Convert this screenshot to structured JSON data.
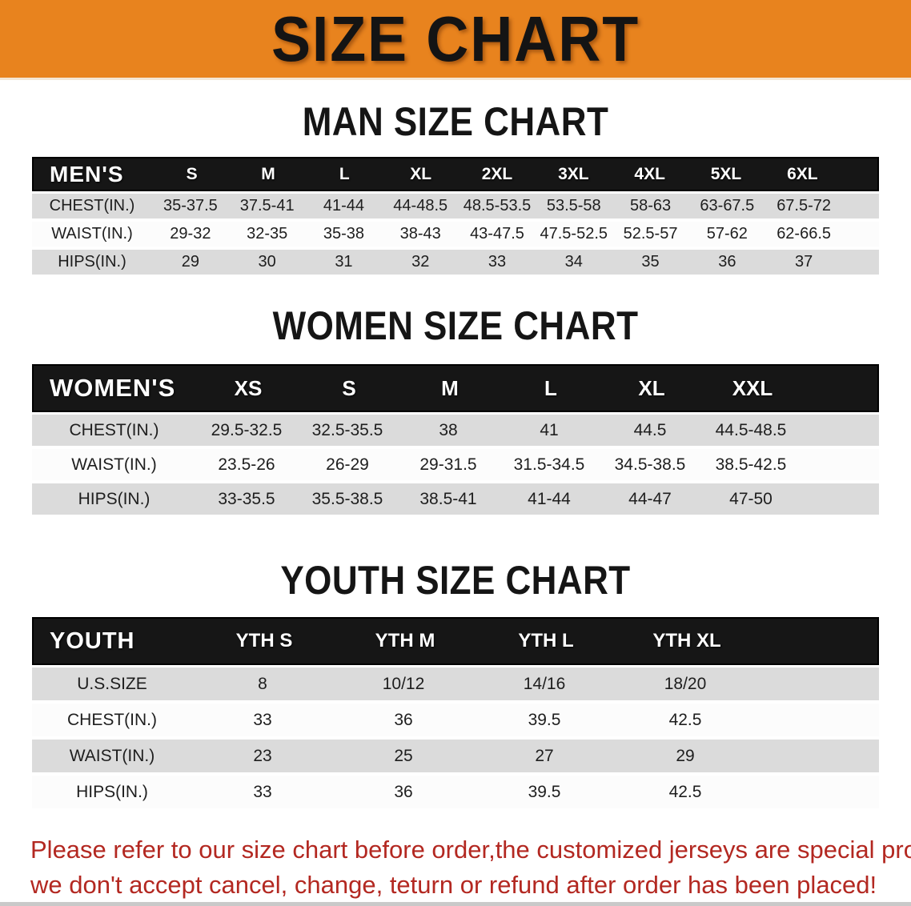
{
  "banner": {
    "title": "SIZE CHART"
  },
  "colors": {
    "banner_bg": "#E8831E",
    "header_bar": "#161616",
    "row_stripe": "#DBDBDB",
    "disclaimer_text": "#B32821"
  },
  "sections": [
    {
      "heading": "MAN SIZE CHART",
      "table": {
        "label": "MEN'S",
        "columns": [
          "S",
          "M",
          "L",
          "XL",
          "2XL",
          "3XL",
          "4XL",
          "5XL",
          "6XL"
        ],
        "rows": [
          {
            "label": "CHEST(IN.)",
            "values": [
              "35-37.5",
              "37.5-41",
              "41-44",
              "44-48.5",
              "48.5-53.5",
              "53.5-58",
              "58-63",
              "63-67.5",
              "67.5-72"
            ]
          },
          {
            "label": "WAIST(IN.)",
            "values": [
              "29-32",
              "32-35",
              "35-38",
              "38-43",
              "43-47.5",
              "47.5-52.5",
              "52.5-57",
              "57-62",
              "62-66.5"
            ]
          },
          {
            "label": "HIPS(IN.)",
            "values": [
              "29",
              "30",
              "31",
              "32",
              "33",
              "34",
              "35",
              "36",
              "37"
            ]
          }
        ]
      }
    },
    {
      "heading": "WOMEN SIZE CHART",
      "table": {
        "label": "WOMEN'S",
        "columns": [
          "XS",
          "S",
          "M",
          "L",
          "XL",
          "XXL"
        ],
        "rows": [
          {
            "label": "CHEST(IN.)",
            "values": [
              "29.5-32.5",
              "32.5-35.5",
              "38",
              "41",
              "44.5",
              "44.5-48.5"
            ]
          },
          {
            "label": "WAIST(IN.)",
            "values": [
              "23.5-26",
              "26-29",
              "29-31.5",
              "31.5-34.5",
              "34.5-38.5",
              "38.5-42.5"
            ]
          },
          {
            "label": "HIPS(IN.)",
            "values": [
              "33-35.5",
              "35.5-38.5",
              "38.5-41",
              "41-44",
              "44-47",
              "47-50"
            ]
          }
        ]
      }
    },
    {
      "heading": "YOUTH SIZE CHART",
      "table": {
        "label": "YOUTH",
        "columns": [
          "YTH S",
          "YTH M",
          "YTH L",
          "YTH XL"
        ],
        "rows": [
          {
            "label": "U.S.SIZE",
            "values": [
              "8",
              "10/12",
              "14/16",
              "18/20"
            ]
          },
          {
            "label": "CHEST(IN.)",
            "values": [
              "33",
              "36",
              "39.5",
              "42.5"
            ]
          },
          {
            "label": "WAIST(IN.)",
            "values": [
              "23",
              "25",
              "27",
              "29"
            ]
          },
          {
            "label": "HIPS(IN.)",
            "values": [
              "33",
              "36",
              "39.5",
              "42.5"
            ]
          }
        ]
      }
    }
  ],
  "disclaimer": {
    "line1": "Please refer to our size chart before order,the customized jerseys are special products,",
    "line2": "we don't accept cancel, change, teturn or refund after order has been placed!"
  }
}
